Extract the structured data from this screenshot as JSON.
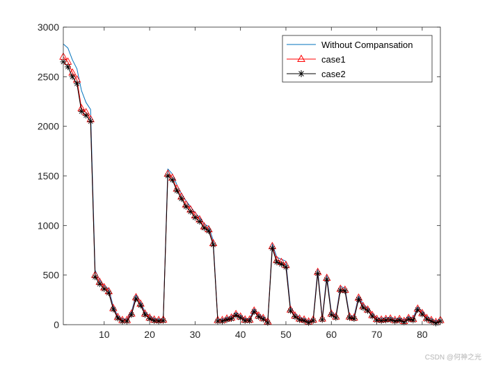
{
  "chart_data": {
    "type": "line",
    "title": "",
    "xlabel": "",
    "ylabel": "",
    "xlim": [
      1,
      84
    ],
    "ylim": [
      0,
      3000
    ],
    "xticks": [
      10,
      20,
      30,
      40,
      50,
      60,
      70,
      80
    ],
    "yticks": [
      0,
      500,
      1000,
      1500,
      2000,
      2500,
      3000
    ],
    "grid": false,
    "legend_position": "top-right",
    "x": [
      1,
      2,
      3,
      4,
      5,
      6,
      7,
      8,
      9,
      10,
      11,
      12,
      13,
      14,
      15,
      16,
      17,
      18,
      19,
      20,
      21,
      22,
      23,
      24,
      25,
      26,
      27,
      28,
      29,
      30,
      31,
      32,
      33,
      34,
      35,
      36,
      37,
      38,
      39,
      40,
      41,
      42,
      43,
      44,
      45,
      46,
      47,
      48,
      49,
      50,
      51,
      52,
      53,
      54,
      55,
      56,
      57,
      58,
      59,
      60,
      61,
      62,
      63,
      64,
      65,
      66,
      67,
      68,
      69,
      70,
      71,
      72,
      73,
      74,
      75,
      76,
      77,
      78,
      79,
      80,
      81,
      82,
      83,
      84
    ],
    "series": [
      {
        "name": "Without Compansation",
        "color": "#0072BD",
        "marker": "none",
        "values": [
          2830,
          2790,
          2670,
          2580,
          2360,
          2240,
          2170,
          550,
          450,
          395,
          360,
          185,
          85,
          60,
          55,
          130,
          300,
          230,
          125,
          90,
          60,
          55,
          60,
          1570,
          1520,
          1410,
          1320,
          1250,
          1190,
          1130,
          1080,
          1015,
          990,
          850,
          55,
          55,
          70,
          85,
          120,
          95,
          60,
          60,
          160,
          105,
          80,
          40,
          815,
          680,
          660,
          640,
          175,
          110,
          75,
          60,
          40,
          60,
          560,
          70,
          500,
          130,
          95,
          385,
          370,
          95,
          85,
          290,
          205,
          170,
          115,
          70,
          65,
          70,
          75,
          60,
          65,
          50,
          80,
          70,
          180,
          135,
          80,
          60,
          35,
          55
        ]
      },
      {
        "name": "case1",
        "color": "#FF0000",
        "marker": "triangle",
        "values": [
          2700,
          2650,
          2540,
          2470,
          2180,
          2140,
          2070,
          500,
          430,
          375,
          335,
          165,
          75,
          45,
          45,
          110,
          275,
          210,
          110,
          70,
          50,
          45,
          50,
          1520,
          1480,
          1370,
          1290,
          1210,
          1160,
          1100,
          1060,
          990,
          960,
          820,
          45,
          45,
          60,
          70,
          105,
          80,
          50,
          50,
          140,
          90,
          65,
          30,
          790,
          650,
          630,
          600,
          150,
          90,
          60,
          50,
          30,
          50,
          530,
          60,
          470,
          110,
          80,
          360,
          350,
          80,
          70,
          270,
          185,
          150,
          95,
          55,
          50,
          55,
          60,
          45,
          55,
          35,
          65,
          55,
          160,
          115,
          65,
          45,
          25,
          45
        ]
      },
      {
        "name": "case2",
        "color": "#000000",
        "marker": "asterisk",
        "values": [
          2650,
          2600,
          2500,
          2430,
          2150,
          2110,
          2050,
          480,
          410,
          360,
          320,
          155,
          65,
          35,
          35,
          100,
          260,
          195,
          100,
          60,
          40,
          35,
          40,
          1500,
          1460,
          1350,
          1270,
          1190,
          1140,
          1080,
          1040,
          975,
          945,
          805,
          35,
          35,
          50,
          60,
          95,
          70,
          40,
          40,
          130,
          80,
          55,
          20,
          770,
          630,
          610,
          580,
          140,
          80,
          50,
          40,
          20,
          40,
          515,
          50,
          455,
          100,
          70,
          345,
          340,
          70,
          60,
          255,
          170,
          140,
          85,
          45,
          40,
          45,
          50,
          35,
          45,
          25,
          55,
          45,
          150,
          105,
          55,
          35,
          15,
          35
        ]
      }
    ]
  },
  "watermark": "CSDN @何神之光"
}
